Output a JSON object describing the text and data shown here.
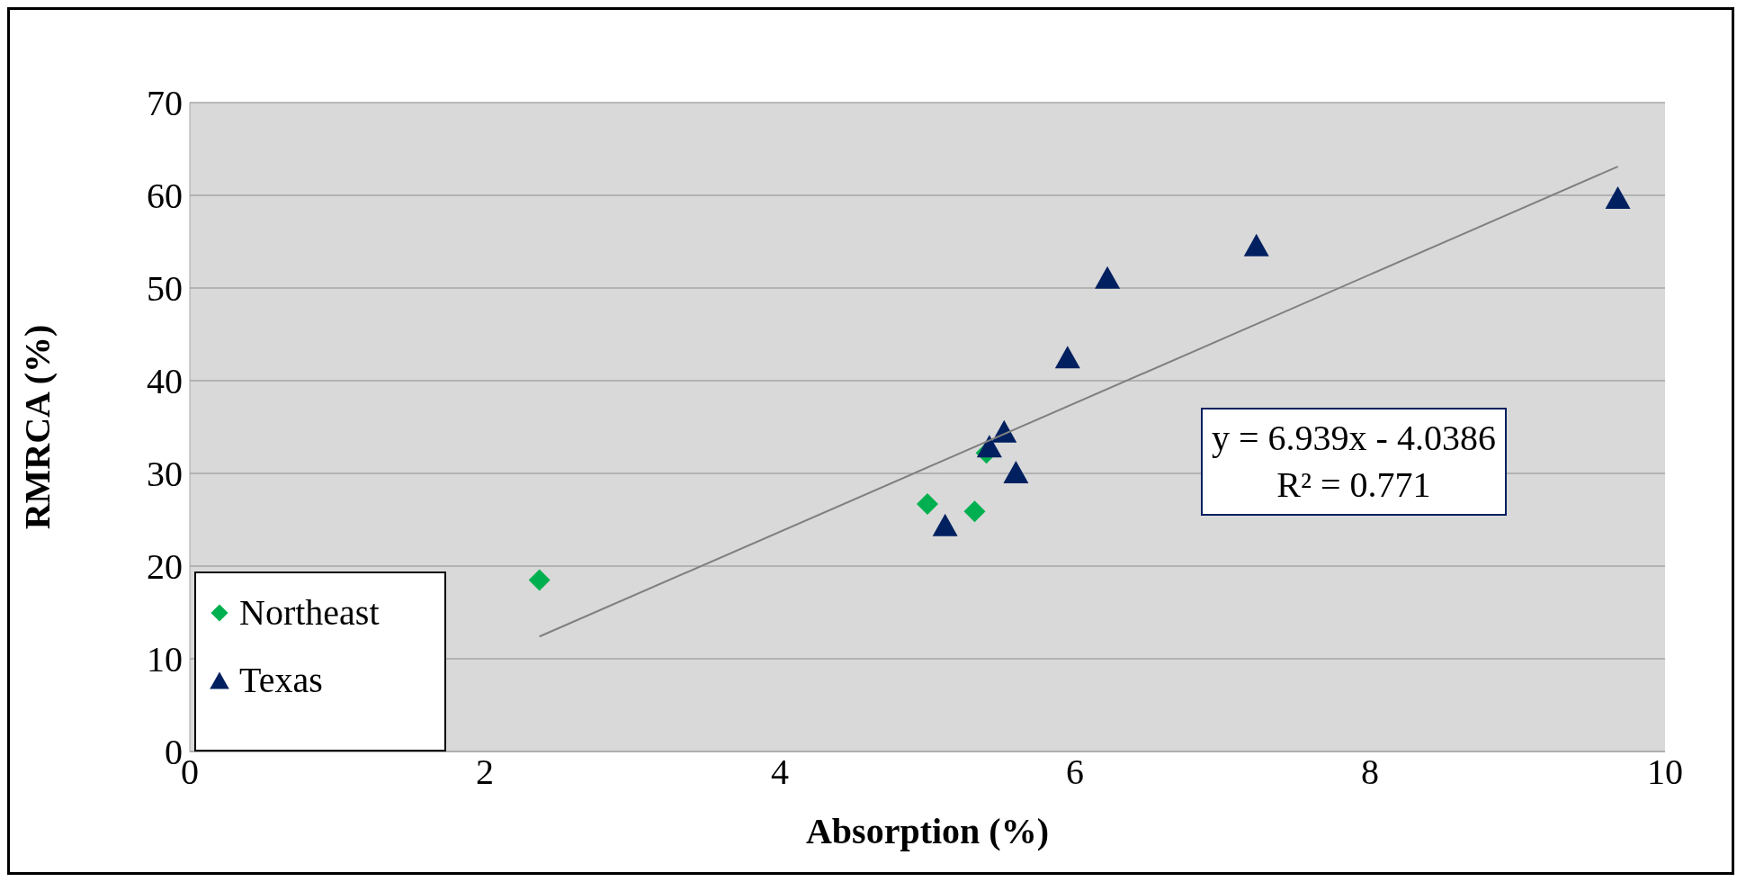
{
  "chart_data": {
    "type": "scatter",
    "xlabel": "Absorption (%)",
    "ylabel": "RMRCA (%)",
    "xlim": [
      0,
      10
    ],
    "xticks": [
      0,
      2,
      4,
      6,
      8,
      10
    ],
    "ylim": [
      0,
      70
    ],
    "yticks": [
      0,
      10,
      20,
      30,
      40,
      50,
      60,
      70
    ],
    "grid": "y",
    "legend": "bottom left",
    "annotations": [
      "y = 6.939x - 4.0386",
      "R² = 0.771"
    ],
    "series": [
      {
        "name": "Northeast",
        "marker": "diamond",
        "color": "#00b050",
        "x": [
          2.37,
          5.0,
          5.32,
          5.4
        ],
        "values": [
          18.5,
          26.7,
          25.9,
          32.2
        ]
      },
      {
        "name": "Texas",
        "marker": "triangle",
        "color": "#002060",
        "x": [
          5.12,
          5.42,
          5.52,
          5.6,
          5.95,
          6.22,
          7.23,
          9.68
        ],
        "values": [
          24.3,
          32.8,
          34.4,
          30.0,
          42.4,
          51.0,
          54.5,
          59.6
        ]
      },
      {
        "type": "line",
        "marker": "none",
        "color": "#808080",
        "x": [
          2.37,
          9.68
        ],
        "values": [
          12.4,
          63.1
        ]
      }
    ]
  }
}
